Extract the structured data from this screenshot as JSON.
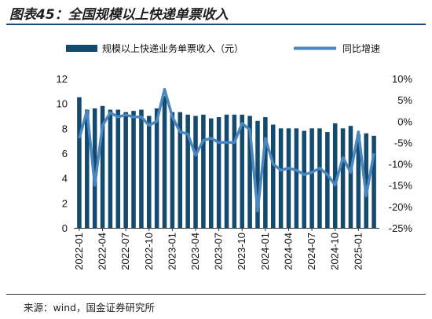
{
  "header": {
    "title": "图表45：全国规模以上快递单票收入"
  },
  "footer": {
    "source": "来源：wind，国金证券研究所"
  },
  "colors": {
    "bar": "#134a6e",
    "line": "#4a86c0",
    "accent_rule": "#1a4a78"
  },
  "chart_data": {
    "type": "bar+line",
    "legend_position": "top",
    "grid": false,
    "categories": [
      "2022-01",
      "2022-02",
      "2022-03",
      "2022-04",
      "2022-05",
      "2022-06",
      "2022-07",
      "2022-08",
      "2022-09",
      "2022-10",
      "2022-11",
      "2022-12",
      "2023-01",
      "2023-02",
      "2023-03",
      "2023-04",
      "2023-05",
      "2023-06",
      "2023-07",
      "2023-08",
      "2023-09",
      "2023-10",
      "2023-11",
      "2023-12",
      "2024-01",
      "2024-02",
      "2024-03",
      "2024-04",
      "2024-05",
      "2024-06",
      "2024-07",
      "2024-08",
      "2024-09",
      "2024-10",
      "2024-11",
      "2024-12",
      "2025-01",
      "2025-02",
      "2025-03"
    ],
    "x_tick_labels": [
      "2022-01",
      "2022-04",
      "2022-07",
      "2022-10",
      "2023-01",
      "2023-04",
      "2023-07",
      "2023-10",
      "2024-01",
      "2024-04",
      "2024-07",
      "2024-10",
      "2025-01"
    ],
    "series": [
      {
        "name": "规模以上快递业务单票收入（元）",
        "type": "bar",
        "axis": "left",
        "values": [
          10.5,
          9.5,
          9.6,
          9.8,
          9.5,
          9.5,
          9.3,
          9.4,
          9.5,
          9.0,
          9.6,
          10.6,
          9.3,
          9.3,
          9.1,
          9.0,
          9.1,
          8.8,
          8.9,
          9.1,
          9.1,
          9.1,
          9.0,
          8.6,
          8.9,
          8.3,
          8.0,
          8.0,
          8.0,
          7.8,
          8.0,
          8.0,
          7.7,
          8.4,
          8.0,
          8.2,
          7.5,
          7.6,
          7.4
        ]
      },
      {
        "name": "同比增速",
        "type": "line",
        "axis": "right",
        "values": [
          -4,
          2.5,
          -15,
          -1,
          2,
          1,
          1.5,
          1,
          1,
          -1,
          0,
          7.5,
          1,
          -2.5,
          -3,
          -8,
          -4.5,
          -4,
          -5,
          -5,
          -5,
          -0.5,
          -2,
          -21,
          -4,
          -10,
          -11.5,
          -11,
          -11.5,
          -12.5,
          -12,
          -11,
          -12.5,
          -15,
          -8.5,
          -12,
          -2.5,
          -17.5,
          -7.5
        ]
      }
    ],
    "y_left": {
      "min": 0,
      "max": 12,
      "ticks": [
        "0",
        "2",
        "4",
        "6",
        "8",
        "10",
        "12"
      ]
    },
    "y_right": {
      "min": -25,
      "max": 10,
      "ticks": [
        "-25%",
        "-20%",
        "-15%",
        "-10%",
        "-5%",
        "0%",
        "5%",
        "10%"
      ]
    }
  }
}
